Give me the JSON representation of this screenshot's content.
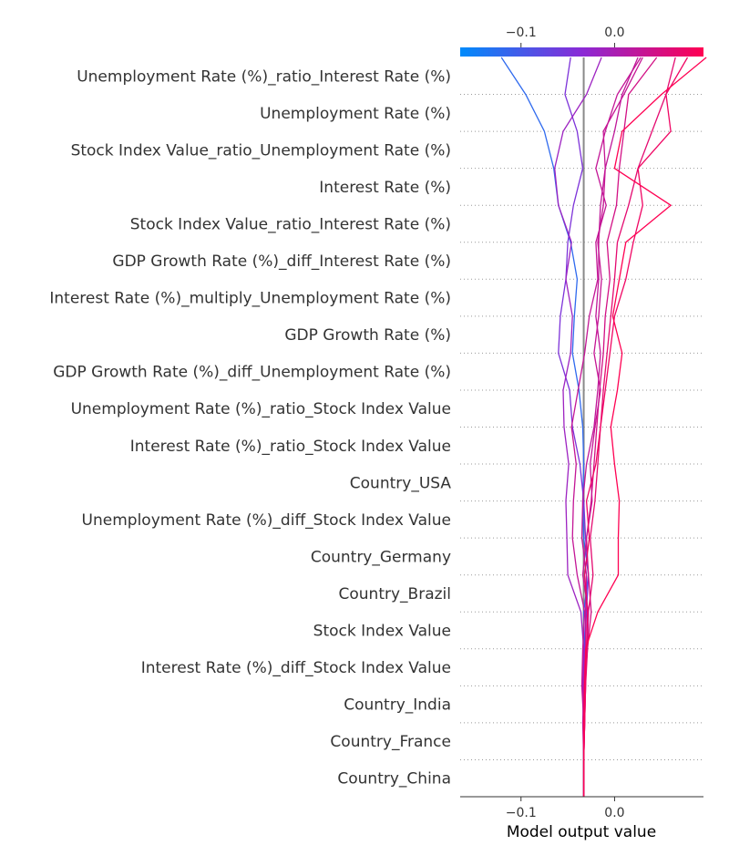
{
  "chart_data": {
    "type": "line",
    "subtype": "shap-decision-plot",
    "xlabel": "Model output value",
    "xlim": [
      -0.165,
      0.095
    ],
    "xticks": [
      -0.1,
      0.0
    ],
    "xtick_labels": [
      "−0.1",
      "0.0"
    ],
    "base_value": -0.033,
    "colorbar": {
      "position": "top",
      "range": [
        -0.165,
        0.095
      ],
      "colors": [
        "#008bfb",
        "#ff0052"
      ]
    },
    "grid": "dotted row separators",
    "features": [
      "Unemployment Rate (%)_ratio_Interest Rate (%)",
      "Unemployment Rate (%)",
      "Stock Index Value_ratio_Unemployment Rate (%)",
      "Interest Rate (%)",
      "Stock Index Value_ratio_Interest Rate (%)",
      "GDP Growth Rate (%)_diff_Interest Rate (%)",
      "Interest Rate (%)_multiply_Unemployment Rate (%)",
      "GDP Growth Rate (%)",
      "GDP Growth Rate (%)_diff_Unemployment Rate (%)",
      "Unemployment Rate (%)_ratio_Stock Index Value",
      "Interest Rate (%)_ratio_Stock Index Value",
      "Country_USA",
      "Unemployment Rate (%)_diff_Stock Index Value",
      "Country_Germany",
      "Country_Brazil",
      "Stock Index Value",
      "Interest Rate (%)_diff_Stock Index Value",
      "Country_India",
      "Country_France",
      "Country_China"
    ],
    "series_note_order": "each series lists cumulative model output from bottom (Country_China, base) to top",
    "series": [
      {
        "values": [
          -0.033,
          -0.033,
          -0.033,
          -0.034,
          -0.032,
          -0.033,
          -0.028,
          -0.033,
          -0.034,
          -0.033,
          -0.034,
          -0.038,
          -0.045,
          -0.043,
          -0.04,
          -0.047,
          -0.06,
          -0.065,
          -0.075,
          -0.095,
          -0.121
        ]
      },
      {
        "values": [
          -0.033,
          -0.033,
          -0.033,
          -0.034,
          -0.032,
          -0.03,
          -0.028,
          -0.031,
          -0.033,
          -0.037,
          -0.045,
          -0.048,
          -0.06,
          -0.058,
          -0.052,
          -0.05,
          -0.044,
          -0.034,
          -0.04,
          -0.053,
          -0.047
        ]
      },
      {
        "values": [
          -0.033,
          -0.033,
          -0.033,
          -0.034,
          -0.033,
          -0.036,
          -0.05,
          -0.051,
          -0.052,
          -0.049,
          -0.054,
          -0.055,
          -0.047,
          -0.045,
          -0.052,
          -0.046,
          -0.06,
          -0.064,
          -0.055,
          -0.03,
          -0.014
        ]
      },
      {
        "values": [
          -0.033,
          -0.033,
          -0.033,
          -0.035,
          -0.034,
          -0.032,
          -0.04,
          -0.045,
          -0.044,
          -0.041,
          -0.046,
          -0.039,
          -0.032,
          -0.027,
          -0.018,
          -0.02,
          -0.009,
          -0.02,
          -0.01,
          0.003,
          0.028
        ]
      },
      {
        "values": [
          -0.033,
          -0.033,
          -0.034,
          -0.033,
          -0.031,
          -0.031,
          -0.03,
          -0.035,
          -0.034,
          -0.03,
          -0.022,
          -0.018,
          -0.015,
          -0.02,
          -0.017,
          -0.017,
          -0.015,
          -0.01,
          0.0,
          0.008,
          0.025
        ]
      },
      {
        "values": [
          -0.033,
          -0.033,
          -0.032,
          -0.032,
          -0.029,
          -0.025,
          -0.028,
          -0.03,
          -0.025,
          -0.022,
          -0.019,
          -0.016,
          -0.012,
          -0.01,
          -0.005,
          -0.008,
          0.002,
          0.005,
          0.01,
          0.015,
          0.045
        ]
      },
      {
        "values": [
          -0.033,
          -0.033,
          -0.032,
          -0.031,
          -0.029,
          -0.028,
          -0.023,
          -0.026,
          -0.021,
          -0.018,
          -0.015,
          -0.012,
          -0.008,
          -0.004,
          0.0,
          0.003,
          0.015,
          0.025,
          0.04,
          0.055,
          0.065
        ]
      },
      {
        "values": [
          -0.033,
          -0.033,
          -0.032,
          -0.031,
          -0.03,
          -0.028,
          -0.034,
          -0.03,
          -0.024,
          -0.026,
          -0.021,
          -0.015,
          -0.022,
          -0.017,
          -0.014,
          -0.018,
          -0.012,
          -0.01,
          -0.012,
          0.01,
          0.03
        ]
      },
      {
        "values": [
          -0.033,
          -0.033,
          -0.032,
          -0.031,
          -0.03,
          -0.029,
          -0.032,
          -0.027,
          -0.03,
          -0.02,
          -0.015,
          -0.01,
          -0.005,
          0.0,
          0.012,
          0.02,
          0.03,
          0.025,
          0.06,
          0.055,
          0.078
        ]
      },
      {
        "values": [
          -0.033,
          -0.033,
          -0.033,
          -0.032,
          -0.031,
          -0.018,
          0.004,
          0.004,
          0.005,
          0.0,
          -0.004,
          0.003,
          0.008,
          -0.002,
          0.005,
          0.012,
          0.06,
          0.0,
          0.008,
          0.05,
          0.098
        ]
      }
    ]
  }
}
